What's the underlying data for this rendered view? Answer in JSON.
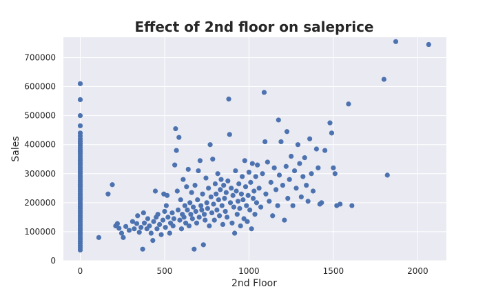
{
  "chart_data": {
    "type": "scatter",
    "title": "Effect of 2nd floor on saleprice",
    "xlabel": "2nd Floor",
    "ylabel": "Sales",
    "xlim": [
      -100,
      2170
    ],
    "ylim": [
      0,
      770000
    ],
    "xticks": [
      0,
      500,
      1000,
      1500,
      2000
    ],
    "yticks": [
      0,
      100000,
      200000,
      300000,
      400000,
      500000,
      600000,
      700000
    ],
    "grid": true,
    "marker_color": "#4c72b0",
    "background_color": "#eaeaf2",
    "points": [
      [
        0,
        610000
      ],
      [
        0,
        555000
      ],
      [
        0,
        500000
      ],
      [
        0,
        465000
      ],
      [
        0,
        440000
      ],
      [
        0,
        430000
      ],
      [
        0,
        420000
      ],
      [
        0,
        412000
      ],
      [
        0,
        405000
      ],
      [
        0,
        398000
      ],
      [
        0,
        390000
      ],
      [
        0,
        382000
      ],
      [
        0,
        375000
      ],
      [
        0,
        368000
      ],
      [
        0,
        360000
      ],
      [
        0,
        352000
      ],
      [
        0,
        345000
      ],
      [
        0,
        337000
      ],
      [
        0,
        330000
      ],
      [
        0,
        322000
      ],
      [
        0,
        315000
      ],
      [
        0,
        307000
      ],
      [
        0,
        300000
      ],
      [
        0,
        292000
      ],
      [
        0,
        285000
      ],
      [
        0,
        277000
      ],
      [
        0,
        270000
      ],
      [
        0,
        262000
      ],
      [
        0,
        255000
      ],
      [
        0,
        247000
      ],
      [
        0,
        240000
      ],
      [
        0,
        232000
      ],
      [
        0,
        225000
      ],
      [
        0,
        217000
      ],
      [
        0,
        210000
      ],
      [
        0,
        202000
      ],
      [
        0,
        195000
      ],
      [
        0,
        187000
      ],
      [
        0,
        180000
      ],
      [
        0,
        172000
      ],
      [
        0,
        165000
      ],
      [
        0,
        157000
      ],
      [
        0,
        150000
      ],
      [
        0,
        142000
      ],
      [
        0,
        135000
      ],
      [
        0,
        127000
      ],
      [
        0,
        120000
      ],
      [
        0,
        112000
      ],
      [
        0,
        105000
      ],
      [
        0,
        97000
      ],
      [
        0,
        90000
      ],
      [
        0,
        82000
      ],
      [
        0,
        75000
      ],
      [
        0,
        67000
      ],
      [
        0,
        60000
      ],
      [
        0,
        52000
      ],
      [
        0,
        45000
      ],
      [
        0,
        37000
      ],
      [
        110,
        80000
      ],
      [
        165,
        230000
      ],
      [
        190,
        262000
      ],
      [
        210,
        120000
      ],
      [
        220,
        128000
      ],
      [
        230,
        112000
      ],
      [
        245,
        95000
      ],
      [
        255,
        80000
      ],
      [
        270,
        118000
      ],
      [
        290,
        105000
      ],
      [
        310,
        135000
      ],
      [
        320,
        110000
      ],
      [
        335,
        128000
      ],
      [
        340,
        155000
      ],
      [
        350,
        98000
      ],
      [
        360,
        115000
      ],
      [
        370,
        40000
      ],
      [
        375,
        165000
      ],
      [
        380,
        130000
      ],
      [
        395,
        110000
      ],
      [
        400,
        145000
      ],
      [
        410,
        120000
      ],
      [
        420,
        95000
      ],
      [
        430,
        70000
      ],
      [
        435,
        135000
      ],
      [
        445,
        240000
      ],
      [
        450,
        150000
      ],
      [
        455,
        110000
      ],
      [
        460,
        160000
      ],
      [
        470,
        125000
      ],
      [
        480,
        90000
      ],
      [
        490,
        140000
      ],
      [
        495,
        230000
      ],
      [
        500,
        170000
      ],
      [
        505,
        115000
      ],
      [
        510,
        190000
      ],
      [
        515,
        225000
      ],
      [
        520,
        150000
      ],
      [
        530,
        95000
      ],
      [
        535,
        130000
      ],
      [
        545,
        165000
      ],
      [
        550,
        120000
      ],
      [
        555,
        145000
      ],
      [
        560,
        330000
      ],
      [
        565,
        455000
      ],
      [
        570,
        380000
      ],
      [
        575,
        240000
      ],
      [
        580,
        175000
      ],
      [
        585,
        425000
      ],
      [
        590,
        140000
      ],
      [
        595,
        210000
      ],
      [
        600,
        110000
      ],
      [
        605,
        160000
      ],
      [
        610,
        280000
      ],
      [
        615,
        150000
      ],
      [
        620,
        190000
      ],
      [
        625,
        130000
      ],
      [
        630,
        255000
      ],
      [
        635,
        175000
      ],
      [
        640,
        315000
      ],
      [
        645,
        120000
      ],
      [
        650,
        200000
      ],
      [
        655,
        160000
      ],
      [
        660,
        235000
      ],
      [
        665,
        145000
      ],
      [
        670,
        185000
      ],
      [
        675,
        40000
      ],
      [
        680,
        260000
      ],
      [
        685,
        170000
      ],
      [
        690,
        130000
      ],
      [
        695,
        210000
      ],
      [
        700,
        310000
      ],
      [
        705,
        150000
      ],
      [
        710,
        345000
      ],
      [
        715,
        190000
      ],
      [
        720,
        175000
      ],
      [
        725,
        230000
      ],
      [
        730,
        55000
      ],
      [
        735,
        160000
      ],
      [
        740,
        140000
      ],
      [
        745,
        285000
      ],
      [
        750,
        200000
      ],
      [
        755,
        180000
      ],
      [
        760,
        250000
      ],
      [
        765,
        120000
      ],
      [
        770,
        400000
      ],
      [
        775,
        220000
      ],
      [
        780,
        165000
      ],
      [
        785,
        350000
      ],
      [
        790,
        195000
      ],
      [
        795,
        140000
      ],
      [
        800,
        265000
      ],
      [
        805,
        230000
      ],
      [
        810,
        175000
      ],
      [
        815,
        300000
      ],
      [
        820,
        210000
      ],
      [
        825,
        155000
      ],
      [
        830,
        245000
      ],
      [
        835,
        280000
      ],
      [
        840,
        190000
      ],
      [
        845,
        125000
      ],
      [
        850,
        260000
      ],
      [
        855,
        215000
      ],
      [
        860,
        170000
      ],
      [
        865,
        235000
      ],
      [
        870,
        150000
      ],
      [
        875,
        275000
      ],
      [
        880,
        557000
      ],
      [
        885,
        435000
      ],
      [
        890,
        200000
      ],
      [
        895,
        250000
      ],
      [
        900,
        130000
      ],
      [
        905,
        225000
      ],
      [
        910,
        185000
      ],
      [
        915,
        95000
      ],
      [
        920,
        310000
      ],
      [
        925,
        240000
      ],
      [
        930,
        160000
      ],
      [
        935,
        205000
      ],
      [
        940,
        265000
      ],
      [
        945,
        180000
      ],
      [
        950,
        120000
      ],
      [
        955,
        230000
      ],
      [
        960,
        290000
      ],
      [
        965,
        210000
      ],
      [
        970,
        145000
      ],
      [
        975,
        345000
      ],
      [
        980,
        255000
      ],
      [
        985,
        190000
      ],
      [
        990,
        135000
      ],
      [
        995,
        225000
      ],
      [
        1000,
        305000
      ],
      [
        1005,
        175000
      ],
      [
        1010,
        270000
      ],
      [
        1015,
        110000
      ],
      [
        1020,
        335000
      ],
      [
        1025,
        215000
      ],
      [
        1030,
        240000
      ],
      [
        1035,
        160000
      ],
      [
        1040,
        290000
      ],
      [
        1045,
        200000
      ],
      [
        1050,
        330000
      ],
      [
        1060,
        250000
      ],
      [
        1070,
        185000
      ],
      [
        1080,
        300000
      ],
      [
        1090,
        580000
      ],
      [
        1095,
        410000
      ],
      [
        1100,
        230000
      ],
      [
        1110,
        340000
      ],
      [
        1120,
        205000
      ],
      [
        1130,
        270000
      ],
      [
        1140,
        155000
      ],
      [
        1150,
        320000
      ],
      [
        1160,
        245000
      ],
      [
        1170,
        190000
      ],
      [
        1175,
        485000
      ],
      [
        1180,
        295000
      ],
      [
        1190,
        410000
      ],
      [
        1200,
        260000
      ],
      [
        1210,
        140000
      ],
      [
        1220,
        325000
      ],
      [
        1225,
        445000
      ],
      [
        1230,
        215000
      ],
      [
        1240,
        280000
      ],
      [
        1250,
        360000
      ],
      [
        1260,
        190000
      ],
      [
        1270,
        310000
      ],
      [
        1280,
        250000
      ],
      [
        1290,
        400000
      ],
      [
        1300,
        335000
      ],
      [
        1310,
        220000
      ],
      [
        1320,
        290000
      ],
      [
        1330,
        355000
      ],
      [
        1340,
        260000
      ],
      [
        1350,
        205000
      ],
      [
        1360,
        420000
      ],
      [
        1370,
        300000
      ],
      [
        1380,
        240000
      ],
      [
        1400,
        385000
      ],
      [
        1410,
        320000
      ],
      [
        1420,
        195000
      ],
      [
        1430,
        200000
      ],
      [
        1450,
        380000
      ],
      [
        1480,
        475000
      ],
      [
        1490,
        440000
      ],
      [
        1500,
        320000
      ],
      [
        1510,
        300000
      ],
      [
        1520,
        190000
      ],
      [
        1540,
        195000
      ],
      [
        1590,
        540000
      ],
      [
        1610,
        190000
      ],
      [
        1800,
        625000
      ],
      [
        1820,
        295000
      ],
      [
        1870,
        755000
      ],
      [
        2065,
        745000
      ]
    ]
  }
}
